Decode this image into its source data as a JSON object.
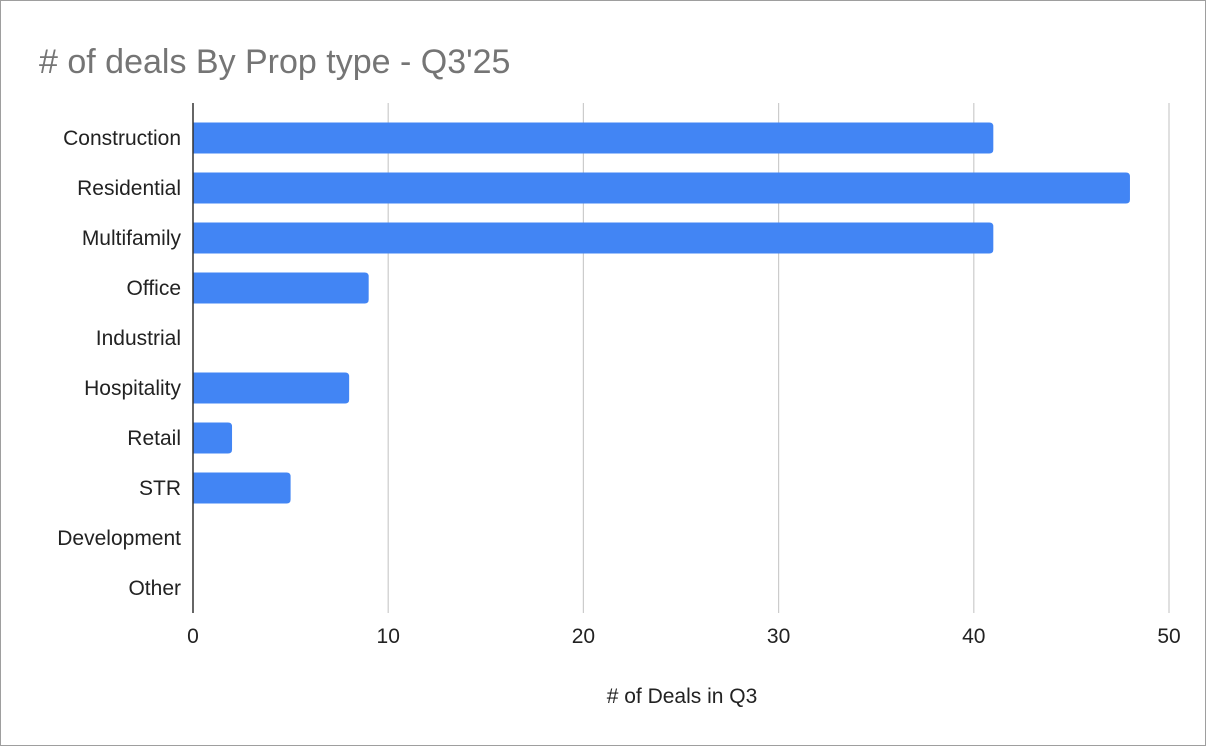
{
  "chart_data": {
    "type": "bar",
    "orientation": "horizontal",
    "title": "# of deals By Prop type - Q3'25",
    "xlabel": "# of Deals in Q3",
    "ylabel": "",
    "categories": [
      "Construction",
      "Residential",
      "Multifamily",
      "Office",
      "Industrial",
      "Hospitality",
      "Retail",
      "STR",
      "Development",
      "Other"
    ],
    "values": [
      41,
      48,
      41,
      9,
      0,
      8,
      2,
      5,
      0,
      0
    ],
    "xlim": [
      0,
      50
    ],
    "x_ticks": [
      0,
      10,
      20,
      30,
      40,
      50
    ],
    "x_tick_labels": [
      "0",
      "10",
      "20",
      "30",
      "40",
      "50"
    ],
    "grid": true,
    "legend": "none",
    "bar_color": "#4285f4",
    "gridline_color": "#cccccc",
    "title_color": "#757575"
  }
}
